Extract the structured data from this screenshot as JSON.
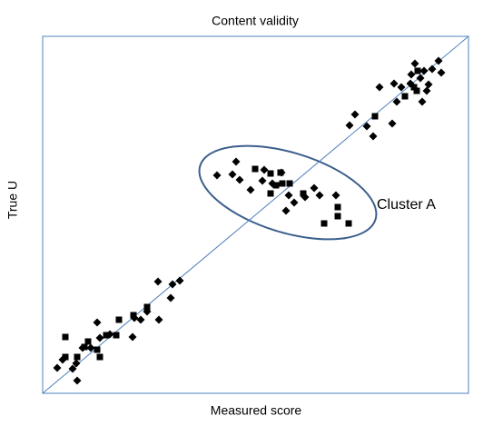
{
  "chart_data": {
    "type": "scatter",
    "title": "Content validity",
    "x_label": "Measured score",
    "y_label": "True U",
    "annotation": "Cluster A",
    "xlim": [
      0,
      469
    ],
    "ylim": [
      0,
      393
    ],
    "series": [
      {
        "marker": "diamond",
        "color": "#000000",
        "x": [
          16,
          22,
          33,
          38,
          37,
          44,
          53,
          60,
          63,
          74,
          99,
          101,
          108,
          115,
          128,
          127,
          141,
          143,
          151,
          192,
          209,
          213,
          217,
          229,
          242,
          244,
          253,
          263,
          271,
          277,
          289,
          299,
          305,
          268,
          323,
          338,
          344,
          357,
          364,
          371,
          385,
          387,
          390,
          395,
          405,
          406,
          410,
          416,
          418,
          420,
          425,
          429,
          436,
          439,
          423
        ],
        "y": [
          28,
          37,
          27,
          14,
          33,
          50,
          50,
          78,
          61,
          65,
          62,
          83,
          81,
          90,
          81,
          123,
          105,
          120,
          124,
          240,
          241,
          255,
          235,
          224,
          234,
          246,
          231,
          243,
          218,
          210,
          216,
          226,
          218,
          201,
          218,
          295,
          307,
          294,
          283,
          337,
          297,
          341,
          321,
          337,
          341,
          351,
          363,
          347,
          321,
          355,
          340,
          357,
          366,
          353,
          333
        ]
      },
      {
        "marker": "square",
        "color": "#000000",
        "x": [
          25,
          25,
          38,
          46,
          50,
          60,
          63,
          70,
          81,
          84,
          100,
          115,
          234,
          251,
          251,
          262,
          264,
          272,
          287,
          310,
          325,
          325,
          337,
          257,
          366,
          399,
          409,
          413,
          412
        ],
        "y": [
          62,
          40,
          40,
          51,
          57,
          48,
          40,
          64,
          64,
          81,
          86,
          95,
          247,
          242,
          220,
          243,
          231,
          231,
          220,
          187,
          205,
          195,
          187,
          229,
          305,
          327,
          337,
          355,
          333
        ]
      }
    ]
  }
}
